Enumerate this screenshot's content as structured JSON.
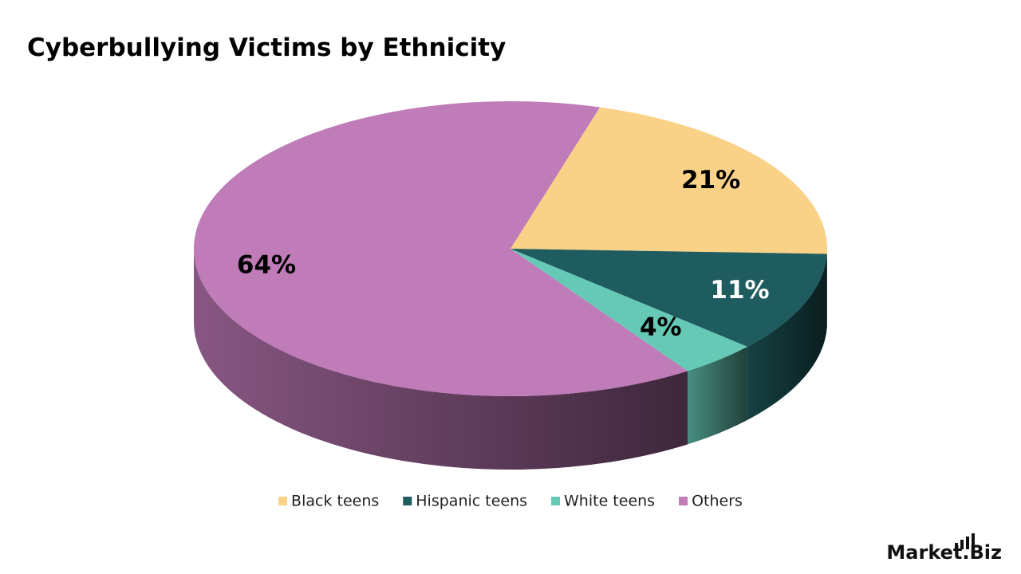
{
  "chart_data": {
    "type": "pie3d",
    "title": "Cyberbullying Victims by Ethnicity",
    "categories": [
      "Black teens",
      "Hispanic teens",
      "White teens",
      "Others"
    ],
    "values": [
      21,
      11,
      4,
      64
    ],
    "value_labels": [
      "21%",
      "11%",
      "4%",
      "64%"
    ],
    "colors": [
      "#fad287",
      "#1f5c5f",
      "#66c9b6",
      "#c07bb9"
    ],
    "legend": "bottom",
    "logo": "Market.Biz"
  }
}
